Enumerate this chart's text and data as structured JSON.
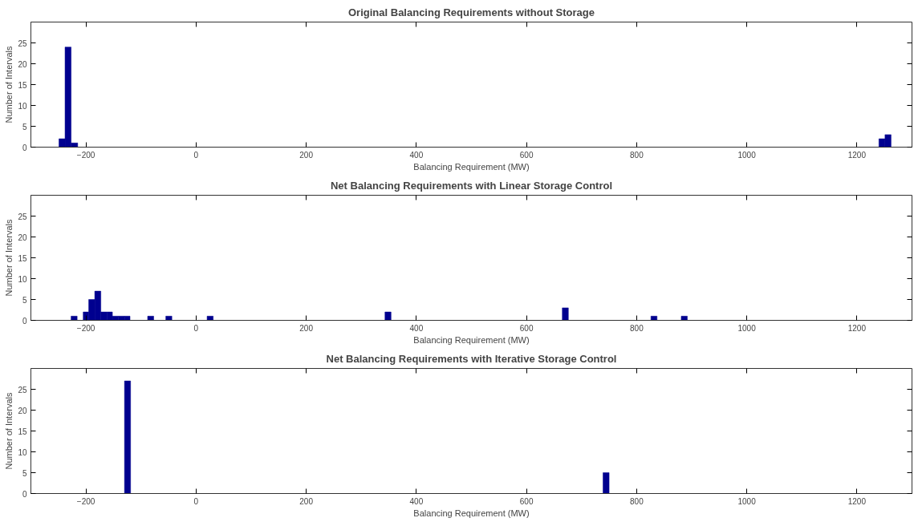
{
  "chart_data": [
    {
      "type": "histogram",
      "title": "Original Balancing Requirements without Storage",
      "xlabel": "Balancing Requirement (MW)",
      "ylabel": "Number of Intervals",
      "color": "#00008f",
      "grid": false,
      "bins": [
        -249,
        -238,
        -227,
        -215,
        1240,
        1251,
        1262
      ],
      "values": [
        2,
        24,
        1,
        0,
        2,
        3
      ],
      "xlim": [
        -300,
        1300
      ],
      "xticks": [
        -200,
        0,
        200,
        400,
        600,
        800,
        1000,
        1200
      ],
      "ylim": [
        0,
        30
      ],
      "yticks": [
        0,
        5,
        10,
        15,
        20,
        25
      ]
    },
    {
      "type": "histogram",
      "title": "Net Balancing Requirements with Linear Storage Control",
      "xlabel": "Balancing Requirement (MW)",
      "ylabel": "Number of Intervals",
      "color": "#00008f",
      "grid": false,
      "bins": [
        -227,
        -216,
        -205,
        -195,
        -184,
        -173,
        -162,
        -152,
        -141,
        -130,
        -120,
        -88,
        -77,
        -55,
        -44,
        20,
        31,
        343,
        354,
        665,
        676,
        826,
        837,
        881,
        892
      ],
      "values": [
        1,
        0,
        2,
        5,
        7,
        2,
        2,
        1,
        1,
        1,
        0,
        1,
        0,
        1,
        0,
        1,
        0,
        2,
        0,
        3,
        0,
        1,
        0,
        1
      ],
      "xlim": [
        -300,
        1300
      ],
      "xticks": [
        -200,
        0,
        200,
        400,
        600,
        800,
        1000,
        1200
      ],
      "ylim": [
        0,
        30
      ],
      "yticks": [
        0,
        5,
        10,
        15,
        20,
        25
      ]
    },
    {
      "type": "histogram",
      "title": "Net Balancing Requirements with Iterative Storage Control",
      "xlabel": "Balancing Requirement (MW)",
      "ylabel": "Number of Intervals",
      "color": "#00008f",
      "grid": false,
      "bins": [
        -130,
        -119,
        739,
        750
      ],
      "values": [
        27,
        0,
        5
      ],
      "xlim": [
        -300,
        1300
      ],
      "xticks": [
        -200,
        0,
        200,
        400,
        600,
        800,
        1000,
        1200
      ],
      "ylim": [
        0,
        30
      ],
      "yticks": [
        0,
        5,
        10,
        15,
        20,
        25
      ]
    }
  ]
}
